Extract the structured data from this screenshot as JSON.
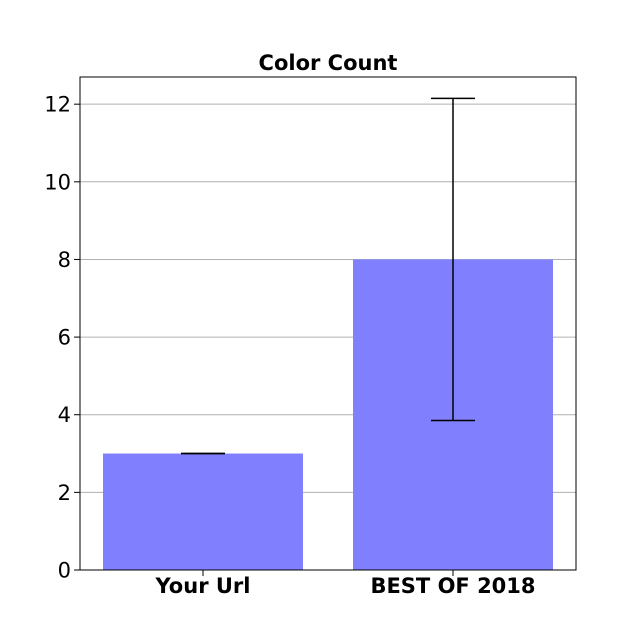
{
  "chart_data": {
    "type": "bar",
    "title": "Color Count",
    "xlabel": "",
    "ylabel": "",
    "categories": [
      "Your Url",
      "BEST OF 2018"
    ],
    "values": [
      3,
      8
    ],
    "error_low": [
      3,
      3.85
    ],
    "error_high": [
      3,
      12.15
    ],
    "ylim": [
      0,
      12.7
    ],
    "yticks": [
      0,
      2,
      4,
      6,
      8,
      10,
      12
    ],
    "grid": "y",
    "bar_color": "#8080ff",
    "grid_color": "#b0b0b0",
    "error_bar_color": "#000000"
  }
}
